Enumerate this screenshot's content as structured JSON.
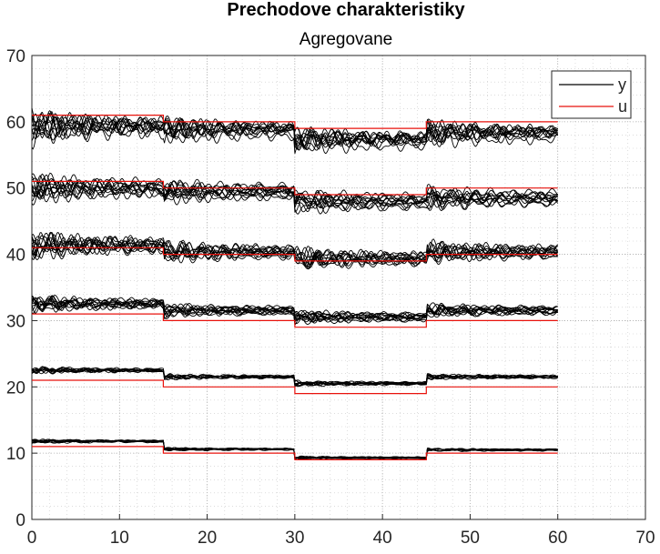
{
  "chart_data": {
    "type": "line",
    "title": "Prechodove charakteristiky",
    "subtitle": "Agregovane",
    "xlim": [
      0,
      70
    ],
    "ylim": [
      0,
      70
    ],
    "xticks": [
      0,
      10,
      20,
      30,
      40,
      50,
      60,
      70
    ],
    "yticks": [
      0,
      10,
      20,
      30,
      40,
      50,
      60,
      70
    ],
    "grid": "major and minor dotted",
    "legend": {
      "placement": "top-right",
      "entries": [
        {
          "name": "y",
          "color": "#000000"
        },
        {
          "name": "u",
          "color": "#e8120c"
        }
      ]
    },
    "colors": {
      "y": "#000000",
      "u": "#e8120c",
      "grid": "#c8c8c8"
    },
    "series": [
      {
        "name": "u",
        "group": 1,
        "x": [
          0,
          15,
          15,
          30,
          30,
          45,
          45,
          60
        ],
        "y": [
          61,
          61,
          60,
          60,
          59,
          59,
          60,
          60
        ]
      },
      {
        "name": "u",
        "group": 2,
        "x": [
          0,
          15,
          15,
          30,
          30,
          45,
          45,
          60
        ],
        "y": [
          51,
          51,
          50,
          50,
          49,
          49,
          50,
          50
        ]
      },
      {
        "name": "u",
        "group": 3,
        "x": [
          0,
          15,
          15,
          30,
          30,
          45,
          45,
          60
        ],
        "y": [
          41,
          41,
          40,
          40,
          39,
          39,
          40,
          40
        ]
      },
      {
        "name": "u",
        "group": 4,
        "x": [
          0,
          15,
          15,
          30,
          30,
          45,
          45,
          60
        ],
        "y": [
          31,
          31,
          30,
          30,
          29,
          29,
          30,
          30
        ]
      },
      {
        "name": "u",
        "group": 5,
        "x": [
          0,
          15,
          15,
          30,
          30,
          45,
          45,
          60
        ],
        "y": [
          21,
          21,
          20,
          20,
          19,
          19,
          20,
          20
        ]
      },
      {
        "name": "u",
        "group": 6,
        "x": [
          0,
          15,
          15,
          30,
          30,
          45,
          45,
          60
        ],
        "y": [
          11,
          11,
          10,
          10,
          9,
          9,
          10,
          10
        ]
      },
      {
        "name": "y",
        "group": 1,
        "x": [
          0,
          15,
          30,
          45,
          60
        ],
        "y": [
          59,
          58.5,
          57,
          58,
          57.5
        ],
        "osc_amp": 2.5,
        "runs": 12
      },
      {
        "name": "y",
        "group": 2,
        "x": [
          0,
          15,
          30,
          45,
          60
        ],
        "y": [
          50,
          49.5,
          48,
          48.5,
          48.5
        ],
        "osc_amp": 2,
        "runs": 12
      },
      {
        "name": "y",
        "group": 3,
        "x": [
          0,
          15,
          30,
          45,
          60
        ],
        "y": [
          41.5,
          40.5,
          39.5,
          40.5,
          40.5
        ],
        "osc_amp": 2,
        "runs": 12
      },
      {
        "name": "y",
        "group": 4,
        "x": [
          0,
          15,
          30,
          45,
          60
        ],
        "y": [
          32.5,
          31.5,
          30.5,
          31.5,
          31.5
        ],
        "osc_amp": 1.2,
        "runs": 12
      },
      {
        "name": "y",
        "group": 5,
        "x": [
          0,
          15,
          30,
          45,
          60
        ],
        "y": [
          22.5,
          21.5,
          20.5,
          21.5,
          21.5
        ],
        "osc_amp": 0.5,
        "runs": 10
      },
      {
        "name": "y",
        "group": 6,
        "x": [
          0,
          15,
          30,
          45,
          60
        ],
        "y": [
          11.8,
          10.6,
          9.3,
          10.5,
          10.5
        ],
        "osc_amp": 0.3,
        "runs": 10
      }
    ]
  }
}
